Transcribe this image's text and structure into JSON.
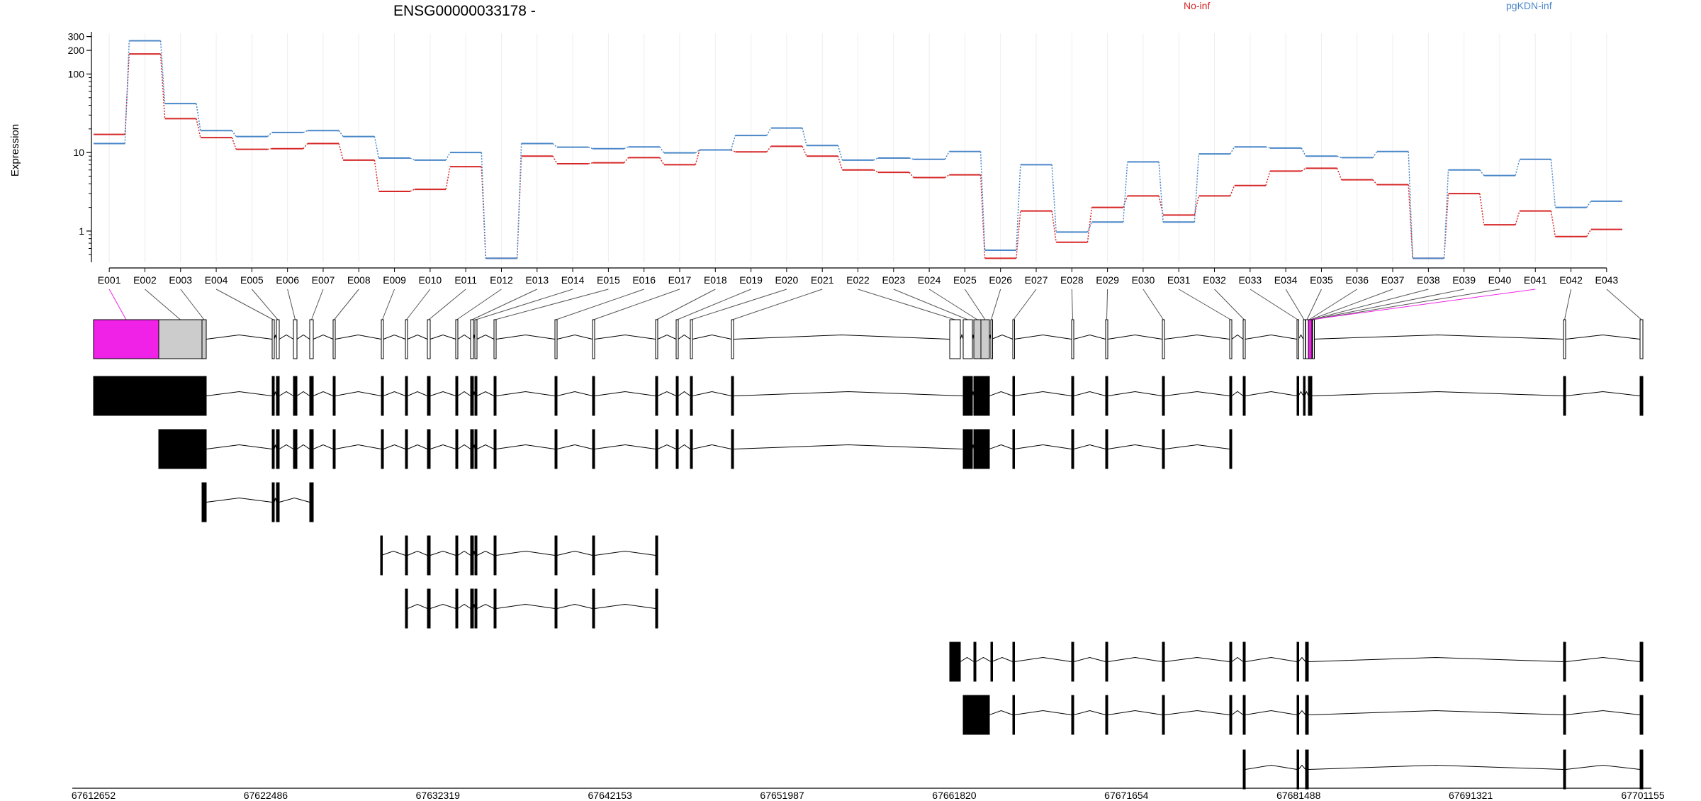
{
  "title": "ENSG00000033178 -",
  "ylabel": "Expression",
  "legend": [
    {
      "name": "No-inf",
      "color": "#d62728"
    },
    {
      "name": "pgKDN-inf",
      "color": "#4a86c8"
    }
  ],
  "chart_data": {
    "type": "line",
    "title": "ENSG00000033178 -",
    "ylabel": "Expression",
    "yscale": "log",
    "ylim": [
      0.4,
      330
    ],
    "yticks": [
      {
        "v": 1,
        "label": "1"
      },
      {
        "v": 10,
        "label": "10"
      },
      {
        "v": 100,
        "label": "100"
      },
      {
        "v": 200,
        "label": "200"
      },
      {
        "v": 300,
        "label": "300"
      }
    ],
    "exons": [
      "E001",
      "E002",
      "E003",
      "E004",
      "E005",
      "E006",
      "E007",
      "E008",
      "E009",
      "E010",
      "E011",
      "E012",
      "E013",
      "E014",
      "E015",
      "E016",
      "E017",
      "E018",
      "E019",
      "E020",
      "E021",
      "E022",
      "E023",
      "E024",
      "E025",
      "E026",
      "E027",
      "E028",
      "E029",
      "E030",
      "E031",
      "E032",
      "E033",
      "E034",
      "E035",
      "E036",
      "E037",
      "E038",
      "E039",
      "E040",
      "E041",
      "E042",
      "E043"
    ],
    "series": [
      {
        "name": "No-inf",
        "color": "#d62728",
        "values": [
          17,
          180,
          27,
          15.5,
          11,
          11.2,
          13,
          8,
          3.2,
          3.4,
          6.6,
          0.45,
          9,
          7.2,
          7.4,
          8.6,
          7,
          10.8,
          10.2,
          12,
          9,
          6,
          5.6,
          4.8,
          5.2,
          0.45,
          1.8,
          0.72,
          2,
          2.8,
          1.6,
          2.8,
          3.8,
          5.8,
          6.3,
          4.5,
          3.9,
          0.45,
          3,
          1.2,
          1.8,
          0.85,
          1.05
        ]
      },
      {
        "name": "pgKDN-inf",
        "color": "#4a86c8",
        "values": [
          13,
          265,
          42,
          19,
          16,
          18,
          19,
          16,
          8.5,
          8,
          10,
          0.45,
          13,
          11.7,
          11.2,
          11.8,
          9.9,
          10.8,
          16.5,
          20.5,
          12.3,
          8,
          8.5,
          8.2,
          10.3,
          0.57,
          7,
          0.97,
          1.3,
          7.6,
          1.3,
          9.6,
          11.8,
          11.4,
          9,
          8.6,
          10.3,
          0.45,
          6,
          5.1,
          8.2,
          2,
          2.4
        ]
      }
    ]
  },
  "genomic_axis": {
    "start": 67612652,
    "end": 67701155,
    "tick_labels": [
      "67612652",
      "67622486",
      "67632319",
      "67642153",
      "67651987",
      "67661820",
      "67671654",
      "67681488",
      "67691321",
      "67701155"
    ]
  },
  "structure": {
    "highlight_exons": [
      1,
      41
    ],
    "highlight_color": "#f022e8",
    "transcripts_count": 9
  }
}
